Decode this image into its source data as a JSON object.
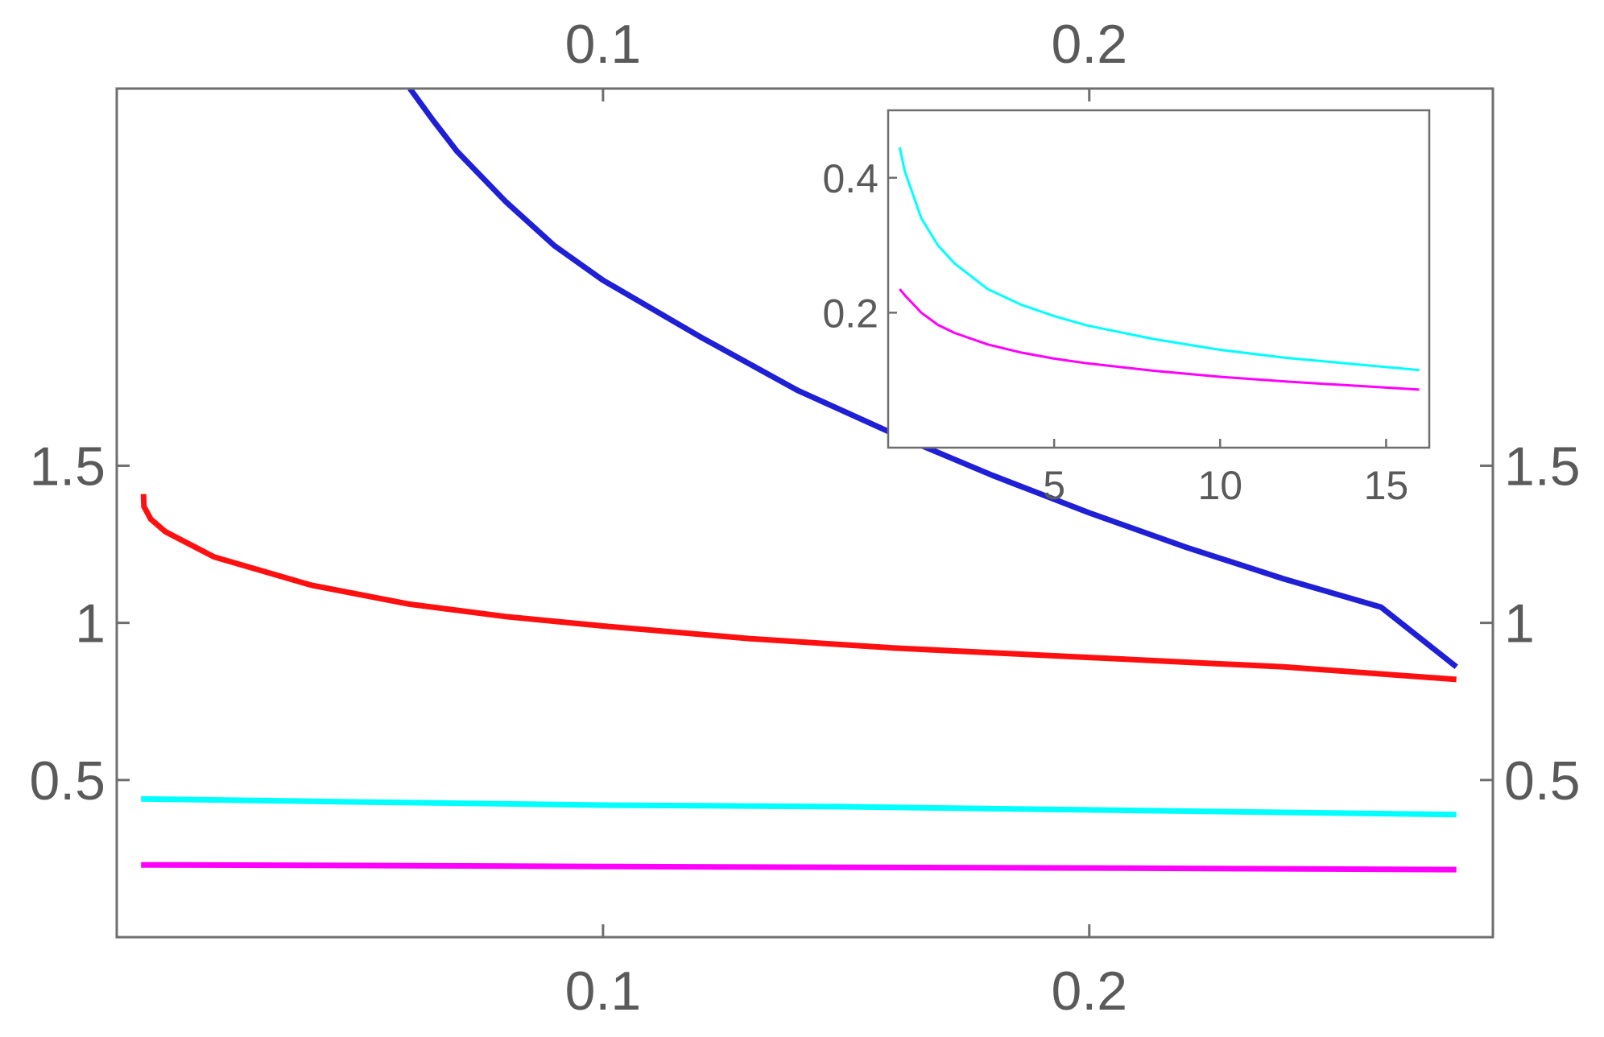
{
  "colors": {
    "frame": "#6e6e6e",
    "tick_text": "#5a5a5a",
    "background": "#ffffff"
  },
  "chart_data": [
    {
      "id": "main",
      "type": "line",
      "title": "",
      "xlabel": "",
      "ylabel": "",
      "grid": false,
      "legend": "none",
      "xlim": [
        0.0,
        0.283
      ],
      "ylim": [
        0.0,
        2.7
      ],
      "x_ticks": [
        0.1,
        0.2
      ],
      "x_tick_labels": [
        "0.1",
        "0.2"
      ],
      "x_ticks_top": [
        0.1,
        0.2
      ],
      "x_tick_labels_top": [
        "0.1",
        "0.2"
      ],
      "y_ticks": [
        0.5,
        1,
        1.5
      ],
      "y_tick_labels": [
        "0.5",
        "1",
        "1.5"
      ],
      "y_ticks_right": [
        0.5,
        1,
        1.5
      ],
      "y_tick_labels_right": [
        "0.5",
        "1",
        "1.5"
      ],
      "series": [
        {
          "color": "#1f1fd6",
          "x": [
            0.0603,
            0.065,
            0.07,
            0.08,
            0.09,
            0.1,
            0.12,
            0.14,
            0.16,
            0.18,
            0.2,
            0.22,
            0.24,
            0.26,
            0.2755
          ],
          "y": [
            2.7,
            2.6,
            2.5,
            2.34,
            2.2,
            2.09,
            1.91,
            1.74,
            1.6,
            1.47,
            1.35,
            1.24,
            1.14,
            1.05,
            0.86
          ]
        },
        {
          "color": "#ff1010",
          "x": [
            0.0055,
            0.0056,
            0.007,
            0.01,
            0.02,
            0.04,
            0.06,
            0.08,
            0.1,
            0.13,
            0.16,
            0.2,
            0.24,
            0.2755
          ],
          "y": [
            1.41,
            1.37,
            1.33,
            1.29,
            1.21,
            1.12,
            1.06,
            1.02,
            0.99,
            0.95,
            0.92,
            0.89,
            0.86,
            0.82
          ]
        },
        {
          "color": "#00ffff",
          "x": [
            0.005,
            0.05,
            0.1,
            0.15,
            0.2,
            0.2755
          ],
          "y": [
            0.44,
            0.43,
            0.42,
            0.415,
            0.405,
            0.39
          ]
        },
        {
          "color": "#ff00ff",
          "x": [
            0.005,
            0.05,
            0.1,
            0.15,
            0.2,
            0.2755
          ],
          "y": [
            0.23,
            0.228,
            0.225,
            0.222,
            0.22,
            0.215
          ]
        }
      ]
    },
    {
      "id": "inset",
      "type": "line",
      "title": "",
      "xlabel": "",
      "ylabel": "",
      "grid": false,
      "legend": "none",
      "xlim": [
        0.0,
        16.3
      ],
      "ylim": [
        0.0,
        0.5
      ],
      "x_ticks": [
        5,
        10,
        15
      ],
      "x_tick_labels": [
        "5",
        "10",
        "15"
      ],
      "y_ticks": [
        0.2,
        0.4
      ],
      "y_tick_labels": [
        "0.2",
        "0.4"
      ],
      "series": [
        {
          "color": "#00ffff",
          "x": [
            0.35,
            0.5,
            1,
            1.5,
            2,
            3,
            4,
            5,
            6,
            8,
            10,
            12,
            14,
            16
          ],
          "y": [
            0.445,
            0.41,
            0.34,
            0.3,
            0.273,
            0.235,
            0.212,
            0.195,
            0.181,
            0.161,
            0.145,
            0.133,
            0.124,
            0.115
          ]
        },
        {
          "color": "#ff00ff",
          "x": [
            0.35,
            0.5,
            1,
            1.5,
            2,
            3,
            4,
            5,
            6,
            8,
            10,
            12,
            14,
            16
          ],
          "y": [
            0.235,
            0.226,
            0.2,
            0.182,
            0.17,
            0.153,
            0.141,
            0.132,
            0.125,
            0.114,
            0.105,
            0.098,
            0.092,
            0.086
          ]
        }
      ]
    }
  ]
}
